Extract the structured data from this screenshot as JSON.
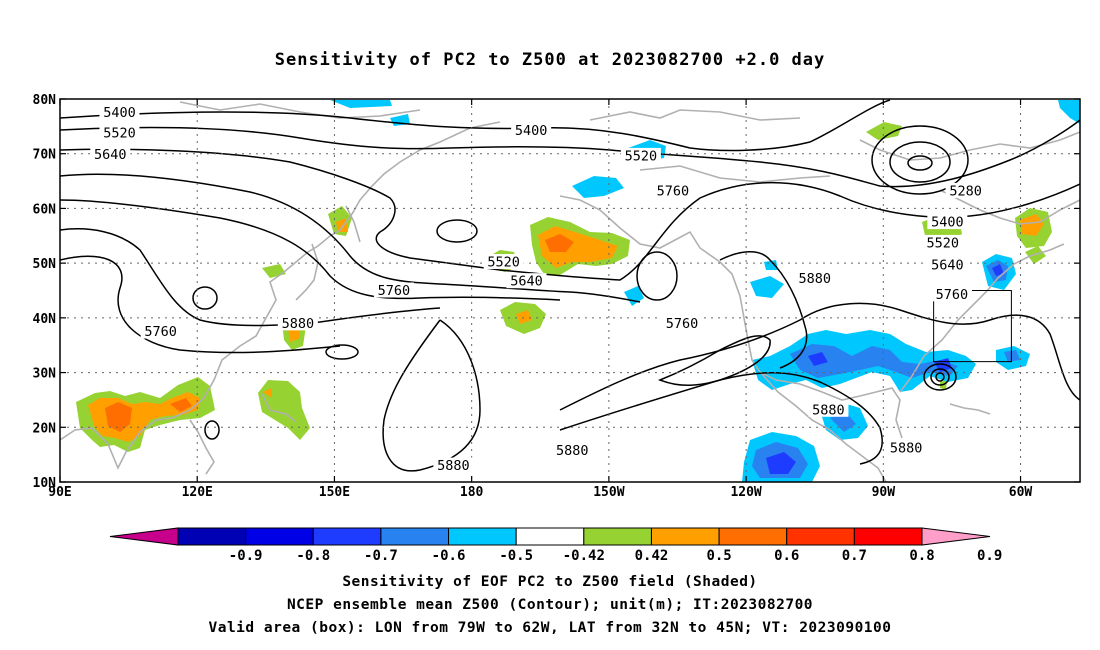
{
  "title": "Sensitivity of PC2 to Z500 at 2023082700 +2.0 day",
  "map": {
    "lon_ticks": [
      {
        "lon": 90,
        "label": "90E"
      },
      {
        "lon": 120,
        "label": "120E"
      },
      {
        "lon": 150,
        "label": "150E"
      },
      {
        "lon": 180,
        "label": "180"
      },
      {
        "lon": 210,
        "label": "150W"
      },
      {
        "lon": 240,
        "label": "120W"
      },
      {
        "lon": 270,
        "label": "90W"
      },
      {
        "lon": 300,
        "label": "60W"
      }
    ],
    "lat_ticks": [
      {
        "lat": 80,
        "label": "80N"
      },
      {
        "lat": 70,
        "label": "70N"
      },
      {
        "lat": 60,
        "label": "60N"
      },
      {
        "lat": 50,
        "label": "50N"
      },
      {
        "lat": 40,
        "label": "40N"
      },
      {
        "lat": 30,
        "label": "30N"
      },
      {
        "lat": 20,
        "label": "20N"
      },
      {
        "lat": 10,
        "label": "10N"
      }
    ],
    "lon_range": [
      90,
      313
    ],
    "lat_range": [
      10,
      80
    ],
    "grid": "dotted",
    "valid_box": {
      "lon_min": 281,
      "lon_max": 298,
      "lat_min": 32,
      "lat_max": 45
    },
    "contour_labels": [
      {
        "text": "5400",
        "lon": 103,
        "lat": 77.5
      },
      {
        "text": "5520",
        "lon": 103,
        "lat": 73.8
      },
      {
        "text": "5640",
        "lon": 101,
        "lat": 69.9
      },
      {
        "text": "5400",
        "lon": 193,
        "lat": 74.2
      },
      {
        "text": "5520",
        "lon": 217,
        "lat": 69.6
      },
      {
        "text": "5760",
        "lon": 224,
        "lat": 63.2
      },
      {
        "text": "5280",
        "lon": 288,
        "lat": 63.2
      },
      {
        "text": "5400",
        "lon": 284,
        "lat": 57.5
      },
      {
        "text": "5520",
        "lon": 283,
        "lat": 53.7
      },
      {
        "text": "5640",
        "lon": 284,
        "lat": 49.7
      },
      {
        "text": "5760",
        "lon": 285,
        "lat": 44.3
      },
      {
        "text": "5520",
        "lon": 187,
        "lat": 50.2
      },
      {
        "text": "5640",
        "lon": 192,
        "lat": 46.7
      },
      {
        "text": "5760",
        "lon": 163,
        "lat": 45.0
      },
      {
        "text": "5880",
        "lon": 142,
        "lat": 39.0
      },
      {
        "text": "5760",
        "lon": 112,
        "lat": 37.5
      },
      {
        "text": "5760",
        "lon": 226,
        "lat": 39.0
      },
      {
        "text": "5880",
        "lon": 255,
        "lat": 47.2
      },
      {
        "text": "5880",
        "lon": 258,
        "lat": 23.2
      },
      {
        "text": "5880",
        "lon": 275,
        "lat": 16.2
      },
      {
        "text": "5880",
        "lon": 202,
        "lat": 15.8
      },
      {
        "text": "5880",
        "lon": 176,
        "lat": 13.0
      }
    ]
  },
  "colorbar": {
    "labels": [
      "-0.9",
      "-0.8",
      "-0.7",
      "-0.6",
      "-0.5",
      "-0.42",
      "0.42",
      "0.5",
      "0.6",
      "0.7",
      "0.8",
      "0.9"
    ],
    "colors": [
      "#c6008a",
      "#0000b4",
      "#0000e6",
      "#1e3cff",
      "#2882f0",
      "#00c8ff",
      "#ffffff",
      "#96d232",
      "#ffa000",
      "#ff6e00",
      "#ff3200",
      "#ff0000",
      "#ff9ec8"
    ]
  },
  "captions": {
    "line1": "Sensitivity of EOF PC2 to Z500 field (Shaded)",
    "line2": "NCEP ensemble mean Z500 (Contour); unit(m); IT:2023082700",
    "line3": "Valid area (box): LON from 79W to 62W, LAT from 32N to 45N; VT: 2023090100"
  }
}
